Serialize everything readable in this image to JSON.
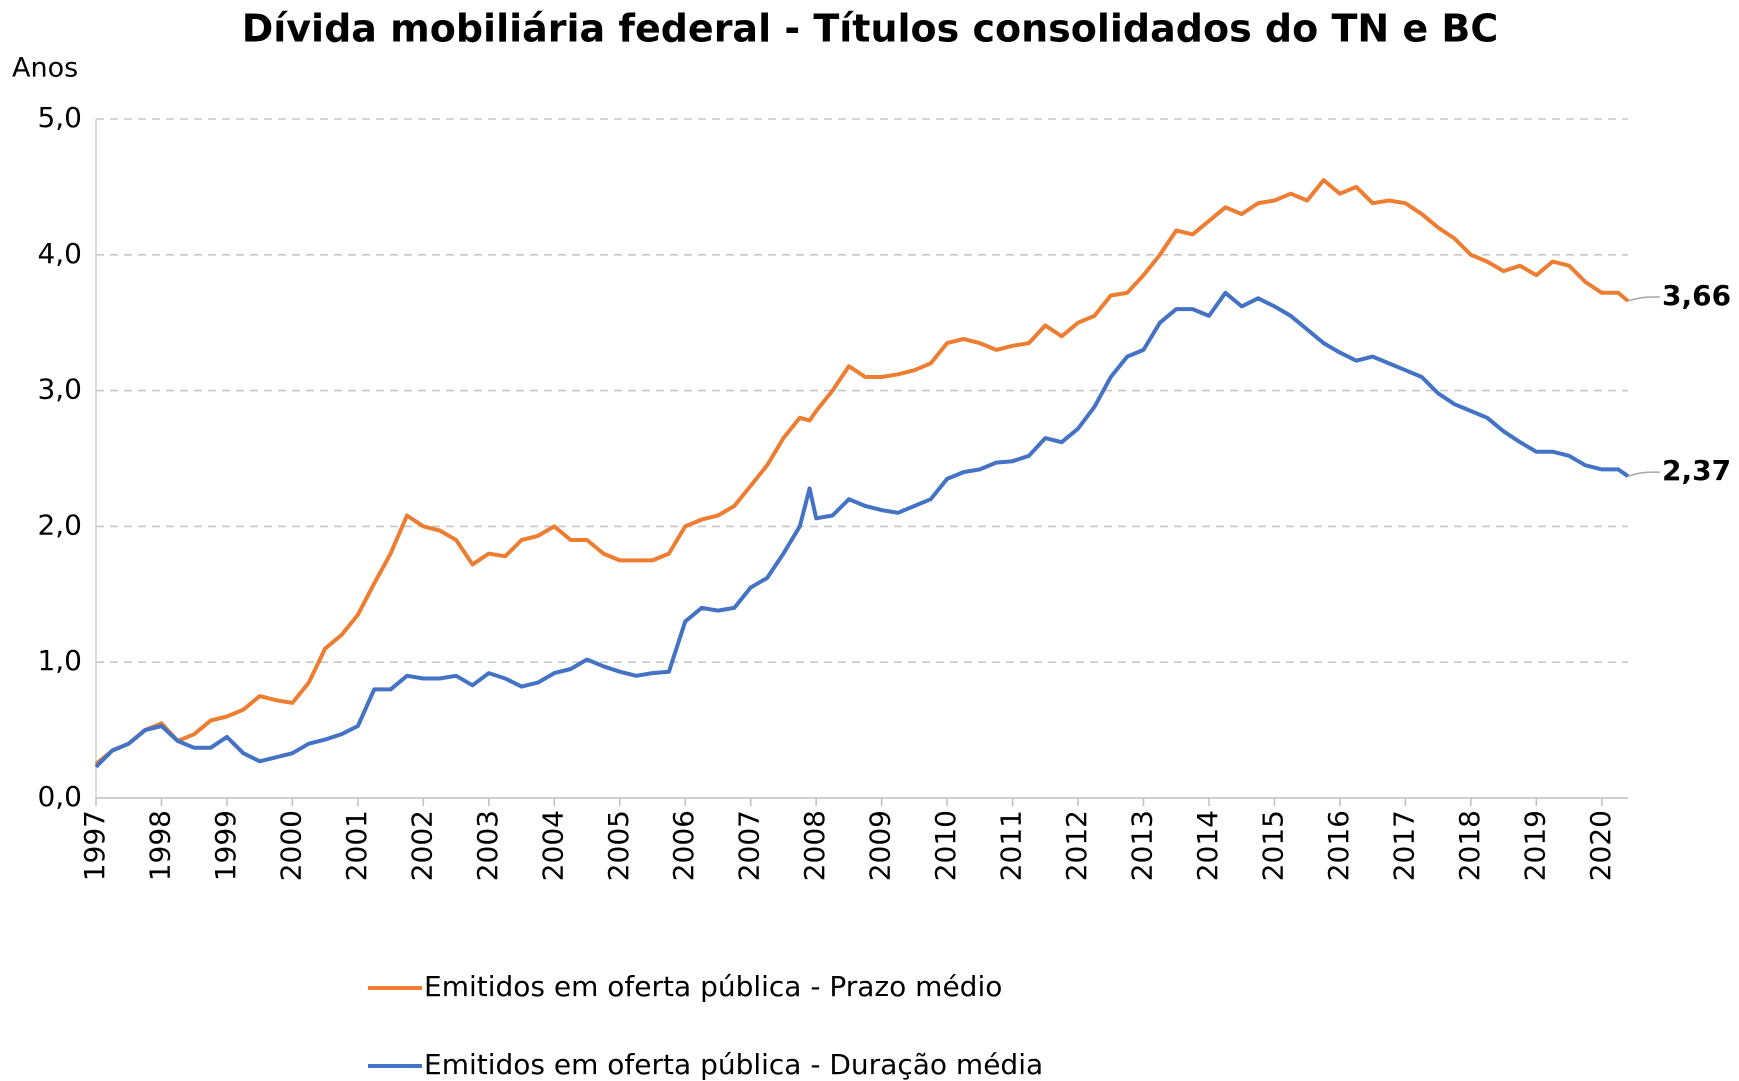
{
  "chart_data": {
    "type": "line",
    "title": "Dívida mobiliária federal - Títulos consolidados do TN e BC",
    "y_label": "Anos",
    "x": [
      1997,
      1997.25,
      1997.5,
      1997.75,
      1998,
      1998.25,
      1998.5,
      1998.75,
      1999,
      1999.25,
      1999.5,
      1999.75,
      2000,
      2000.25,
      2000.5,
      2000.75,
      2001,
      2001.25,
      2001.5,
      2001.75,
      2002,
      2002.25,
      2002.5,
      2002.75,
      2003,
      2003.25,
      2003.5,
      2003.75,
      2004,
      2004.25,
      2004.5,
      2004.75,
      2005,
      2005.25,
      2005.5,
      2005.75,
      2006,
      2006.25,
      2006.5,
      2006.75,
      2007,
      2007.25,
      2007.5,
      2007.75,
      2007.9,
      2008,
      2008.25,
      2008.5,
      2008.75,
      2009,
      2009.25,
      2009.5,
      2009.75,
      2010,
      2010.25,
      2010.5,
      2010.75,
      2011,
      2011.25,
      2011.5,
      2011.75,
      2012,
      2012.25,
      2012.5,
      2012.75,
      2013,
      2013.25,
      2013.5,
      2013.75,
      2014,
      2014.25,
      2014.5,
      2014.75,
      2015,
      2015.25,
      2015.5,
      2015.75,
      2016,
      2016.25,
      2016.5,
      2016.75,
      2017,
      2017.25,
      2017.5,
      2017.75,
      2018,
      2018.25,
      2018.5,
      2018.75,
      2019,
      2019.25,
      2019.5,
      2019.75,
      2020,
      2020.25,
      2020.4
    ],
    "series": [
      {
        "name": "Emitidos em oferta pública - Prazo médio",
        "color": "#ed7d31",
        "end_label": "3,66",
        "values": [
          0.25,
          0.35,
          0.4,
          0.5,
          0.55,
          0.42,
          0.47,
          0.57,
          0.6,
          0.65,
          0.75,
          0.72,
          0.7,
          0.85,
          1.1,
          1.2,
          1.35,
          1.58,
          1.8,
          2.08,
          2.0,
          1.97,
          1.9,
          1.72,
          1.8,
          1.78,
          1.9,
          1.93,
          2.0,
          1.9,
          1.9,
          1.8,
          1.75,
          1.75,
          1.75,
          1.8,
          2.0,
          2.05,
          2.08,
          2.15,
          2.3,
          2.45,
          2.65,
          2.8,
          2.78,
          2.85,
          3.0,
          3.18,
          3.1,
          3.1,
          3.12,
          3.15,
          3.2,
          3.35,
          3.38,
          3.35,
          3.3,
          3.33,
          3.35,
          3.48,
          3.4,
          3.5,
          3.55,
          3.7,
          3.72,
          3.85,
          4.0,
          4.18,
          4.15,
          4.25,
          4.35,
          4.3,
          4.38,
          4.4,
          4.45,
          4.4,
          4.55,
          4.45,
          4.5,
          4.38,
          4.4,
          4.38,
          4.3,
          4.2,
          4.12,
          4.0,
          3.95,
          3.88,
          3.92,
          3.85,
          3.95,
          3.92,
          3.8,
          3.72,
          3.72,
          3.66
        ]
      },
      {
        "name": "Emitidos em oferta pública - Duração média",
        "color": "#4472c4",
        "end_label": "2,37",
        "values": [
          0.23,
          0.35,
          0.4,
          0.5,
          0.53,
          0.42,
          0.37,
          0.37,
          0.45,
          0.33,
          0.27,
          0.3,
          0.33,
          0.4,
          0.43,
          0.47,
          0.53,
          0.8,
          0.8,
          0.9,
          0.88,
          0.88,
          0.9,
          0.83,
          0.92,
          0.88,
          0.82,
          0.85,
          0.92,
          0.95,
          1.02,
          0.97,
          0.93,
          0.9,
          0.92,
          0.93,
          1.3,
          1.4,
          1.38,
          1.4,
          1.55,
          1.62,
          1.8,
          2.0,
          2.28,
          2.06,
          2.08,
          2.2,
          2.15,
          2.12,
          2.1,
          2.15,
          2.2,
          2.35,
          2.4,
          2.42,
          2.47,
          2.48,
          2.52,
          2.65,
          2.62,
          2.72,
          2.88,
          3.1,
          3.25,
          3.3,
          3.5,
          3.6,
          3.6,
          3.55,
          3.72,
          3.62,
          3.68,
          3.62,
          3.55,
          3.45,
          3.35,
          3.28,
          3.22,
          3.25,
          3.2,
          3.15,
          3.1,
          2.98,
          2.9,
          2.85,
          2.8,
          2.7,
          2.62,
          2.55,
          2.55,
          2.52,
          2.45,
          2.42,
          2.42,
          2.37
        ]
      }
    ],
    "xlim": [
      1997,
      2020.4
    ],
    "xticks": [
      1997,
      1998,
      1999,
      2000,
      2001,
      2002,
      2003,
      2004,
      2005,
      2006,
      2007,
      2008,
      2009,
      2010,
      2011,
      2012,
      2013,
      2014,
      2015,
      2016,
      2017,
      2018,
      2019,
      2020
    ],
    "ylim": [
      0,
      5
    ],
    "yticks": [
      {
        "value": 0,
        "label": "0,0"
      },
      {
        "value": 1,
        "label": "1,0"
      },
      {
        "value": 2,
        "label": "2,0"
      },
      {
        "value": 3,
        "label": "3,0"
      },
      {
        "value": 4,
        "label": "4,0"
      },
      {
        "value": 5,
        "label": "5,0"
      }
    ],
    "grid": true,
    "legend": "bottom"
  }
}
